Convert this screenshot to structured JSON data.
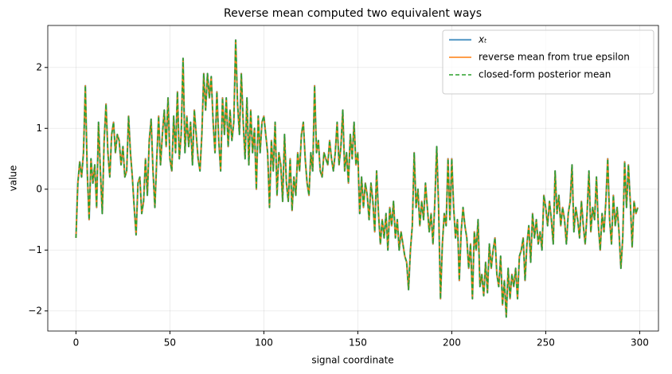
{
  "chart_data": {
    "type": "line",
    "title": "Reverse mean computed two equivalent ways",
    "xlabel": "signal coordinate",
    "ylabel": "value",
    "x": [
      0,
      1,
      2,
      3,
      4,
      5,
      6,
      7,
      8,
      9,
      10,
      11,
      12,
      13,
      14,
      15,
      16,
      17,
      18,
      19,
      20,
      21,
      22,
      23,
      24,
      25,
      26,
      27,
      28,
      29,
      30,
      31,
      32,
      33,
      34,
      35,
      36,
      37,
      38,
      39,
      40,
      41,
      42,
      43,
      44,
      45,
      46,
      47,
      48,
      49,
      50,
      51,
      52,
      53,
      54,
      55,
      56,
      57,
      58,
      59,
      60,
      61,
      62,
      63,
      64,
      65,
      66,
      67,
      68,
      69,
      70,
      71,
      72,
      73,
      74,
      75,
      76,
      77,
      78,
      79,
      80,
      81,
      82,
      83,
      84,
      85,
      86,
      87,
      88,
      89,
      90,
      91,
      92,
      93,
      94,
      95,
      96,
      97,
      98,
      99,
      100,
      101,
      102,
      103,
      104,
      105,
      106,
      107,
      108,
      109,
      110,
      111,
      112,
      113,
      114,
      115,
      116,
      117,
      118,
      119,
      120,
      121,
      122,
      123,
      124,
      125,
      126,
      127,
      128,
      129,
      130,
      131,
      132,
      133,
      134,
      135,
      136,
      137,
      138,
      139,
      140,
      141,
      142,
      143,
      144,
      145,
      146,
      147,
      148,
      149,
      150,
      151,
      152,
      153,
      154,
      155,
      156,
      157,
      158,
      159,
      160,
      161,
      162,
      163,
      164,
      165,
      166,
      167,
      168,
      169,
      170,
      171,
      172,
      173,
      174,
      175,
      176,
      177,
      178,
      179,
      180,
      181,
      182,
      183,
      184,
      185,
      186,
      187,
      188,
      189,
      190,
      191,
      192,
      193,
      194,
      195,
      196,
      197,
      198,
      199,
      200,
      201,
      202,
      203,
      204,
      205,
      206,
      207,
      208,
      209,
      210,
      211,
      212,
      213,
      214,
      215,
      216,
      217,
      218,
      219,
      220,
      221,
      222,
      223,
      224,
      225,
      226,
      227,
      228,
      229,
      230,
      231,
      232,
      233,
      234,
      235,
      236,
      237,
      238,
      239,
      240,
      241,
      242,
      243,
      244,
      245,
      246,
      247,
      248,
      249,
      250,
      251,
      252,
      253,
      254,
      255,
      256,
      257,
      258,
      259,
      260,
      261,
      262,
      263,
      264,
      265,
      266,
      267,
      268,
      269,
      270,
      271,
      272,
      273,
      274,
      275,
      276,
      277,
      278,
      279,
      280,
      281,
      282,
      283,
      284,
      285,
      286,
      287,
      288,
      289,
      290,
      291,
      292,
      293,
      294,
      295,
      296,
      297,
      298,
      299
    ],
    "series": [
      {
        "name": "xₜ",
        "color": "#1f77b4",
        "opacity": 0.7,
        "width": 2.2,
        "linestyle": "solid",
        "values": [
          -0.8,
          0.1,
          0.45,
          0.2,
          0.6,
          1.7,
          0.3,
          -0.5,
          0.5,
          0.1,
          0.4,
          -0.3,
          1.1,
          0.3,
          -0.4,
          0.8,
          1.4,
          0.6,
          0.2,
          0.9,
          1.1,
          0.6,
          0.9,
          0.8,
          0.4,
          0.7,
          0.2,
          0.3,
          1.2,
          0.6,
          0.2,
          -0.3,
          -0.75,
          0.1,
          0.2,
          -0.4,
          -0.2,
          0.5,
          -0.1,
          0.8,
          1.15,
          0.3,
          -0.3,
          0.5,
          1.2,
          0.4,
          0.9,
          1.3,
          0.7,
          1.5,
          0.5,
          0.3,
          1.2,
          0.6,
          1.6,
          0.5,
          0.9,
          2.15,
          0.6,
          1.2,
          0.7,
          1.1,
          0.4,
          1.3,
          0.9,
          0.5,
          0.3,
          0.9,
          1.9,
          1.3,
          1.9,
          1.5,
          1.85,
          1.1,
          0.6,
          1.6,
          0.8,
          0.3,
          1.5,
          0.9,
          1.5,
          0.7,
          1.3,
          0.8,
          1.1,
          2.45,
          1.4,
          0.9,
          1.9,
          1.1,
          0.5,
          1.5,
          0.4,
          1.3,
          0.6,
          1.0,
          0.0,
          1.2,
          0.6,
          1.1,
          1.2,
          0.9,
          0.6,
          -0.3,
          0.8,
          0.3,
          1.1,
          -0.1,
          0.6,
          0.4,
          -0.2,
          0.9,
          0.1,
          -0.2,
          0.5,
          -0.35,
          0.2,
          -0.1,
          0.6,
          0.3,
          0.9,
          1.1,
          0.5,
          0.1,
          -0.1,
          0.6,
          0.3,
          1.7,
          0.6,
          0.8,
          0.3,
          0.2,
          0.6,
          0.5,
          0.4,
          0.8,
          0.5,
          0.3,
          0.6,
          1.1,
          0.4,
          0.7,
          1.3,
          0.3,
          0.6,
          0.1,
          0.9,
          0.5,
          1.1,
          0.4,
          0.6,
          -0.4,
          0.2,
          -0.3,
          0.1,
          -0.1,
          -0.5,
          0.1,
          -0.2,
          -0.7,
          0.3,
          -0.4,
          -0.9,
          -0.5,
          -0.8,
          -0.4,
          -1.0,
          -0.3,
          -0.6,
          -0.2,
          -0.8,
          -0.5,
          -1.0,
          -0.7,
          -0.9,
          -1.1,
          -1.2,
          -1.65,
          -1.0,
          -0.6,
          0.6,
          -0.3,
          0.0,
          -0.6,
          -0.2,
          -0.5,
          0.1,
          -0.3,
          -0.7,
          -0.4,
          -0.9,
          -0.2,
          0.7,
          -0.3,
          -1.8,
          -0.9,
          -0.4,
          -0.6,
          0.5,
          -0.5,
          0.5,
          -0.3,
          -0.8,
          -0.5,
          -1.5,
          -0.7,
          -0.3,
          -0.6,
          -0.8,
          -1.3,
          -0.9,
          -1.8,
          -0.7,
          -1.0,
          -0.5,
          -1.6,
          -1.4,
          -1.75,
          -1.2,
          -1.7,
          -0.9,
          -1.3,
          -1.0,
          -0.8,
          -1.4,
          -1.6,
          -1.1,
          -1.9,
          -1.5,
          -2.1,
          -1.3,
          -1.8,
          -1.4,
          -1.6,
          -1.3,
          -1.8,
          -1.1,
          -1.0,
          -0.8,
          -1.5,
          -0.9,
          -0.6,
          -1.2,
          -0.4,
          -0.8,
          -0.5,
          -0.9,
          -0.7,
          -1.0,
          -0.1,
          -0.3,
          -0.6,
          -0.2,
          -0.5,
          -0.9,
          0.3,
          -0.4,
          -0.1,
          -0.6,
          -0.3,
          -0.5,
          -0.9,
          -0.4,
          -0.2,
          0.4,
          -0.7,
          -0.3,
          -0.5,
          -0.8,
          -0.2,
          -0.6,
          -0.9,
          -0.4,
          0.3,
          -0.7,
          -0.3,
          -0.5,
          0.2,
          -0.6,
          -1.0,
          -0.4,
          -0.7,
          -0.2,
          0.5,
          -0.5,
          -0.9,
          -0.1,
          -0.6,
          -0.3,
          -0.7,
          -1.3,
          -0.8,
          0.45,
          -0.3,
          0.4,
          -0.2,
          -0.95,
          -0.2,
          -0.4,
          -0.3
        ]
      },
      {
        "name": "reverse mean from true epsilon",
        "color": "#ff7f0e",
        "opacity": 1,
        "width": 1.6,
        "linestyle": "solid",
        "values": [
          -0.8,
          0.1,
          0.45,
          0.2,
          0.6,
          1.7,
          0.3,
          -0.5,
          0.5,
          0.1,
          0.4,
          -0.3,
          1.1,
          0.3,
          -0.4,
          0.8,
          1.4,
          0.6,
          0.2,
          0.9,
          1.1,
          0.6,
          0.9,
          0.8,
          0.4,
          0.7,
          0.2,
          0.3,
          1.2,
          0.6,
          0.2,
          -0.3,
          -0.75,
          0.1,
          0.2,
          -0.4,
          -0.2,
          0.5,
          -0.1,
          0.8,
          1.15,
          0.3,
          -0.3,
          0.5,
          1.2,
          0.4,
          0.9,
          1.3,
          0.7,
          1.5,
          0.5,
          0.3,
          1.2,
          0.6,
          1.6,
          0.5,
          0.9,
          2.15,
          0.6,
          1.2,
          0.7,
          1.1,
          0.4,
          1.3,
          0.9,
          0.5,
          0.3,
          0.9,
          1.9,
          1.3,
          1.9,
          1.5,
          1.85,
          1.1,
          0.6,
          1.6,
          0.8,
          0.3,
          1.5,
          0.9,
          1.5,
          0.7,
          1.3,
          0.8,
          1.1,
          2.45,
          1.4,
          0.9,
          1.9,
          1.1,
          0.5,
          1.5,
          0.4,
          1.3,
          0.6,
          1.0,
          0.0,
          1.2,
          0.6,
          1.1,
          1.2,
          0.9,
          0.6,
          -0.3,
          0.8,
          0.3,
          1.1,
          -0.1,
          0.6,
          0.4,
          -0.2,
          0.9,
          0.1,
          -0.2,
          0.5,
          -0.35,
          0.2,
          -0.1,
          0.6,
          0.3,
          0.9,
          1.1,
          0.5,
          0.1,
          -0.1,
          0.6,
          0.3,
          1.7,
          0.6,
          0.8,
          0.3,
          0.2,
          0.6,
          0.5,
          0.4,
          0.8,
          0.5,
          0.3,
          0.6,
          1.1,
          0.4,
          0.7,
          1.3,
          0.3,
          0.6,
          0.1,
          0.9,
          0.5,
          1.1,
          0.4,
          0.6,
          -0.4,
          0.2,
          -0.3,
          0.1,
          -0.1,
          -0.5,
          0.1,
          -0.2,
          -0.7,
          0.3,
          -0.4,
          -0.9,
          -0.5,
          -0.8,
          -0.4,
          -1.0,
          -0.3,
          -0.6,
          -0.2,
          -0.8,
          -0.5,
          -1.0,
          -0.7,
          -0.9,
          -1.1,
          -1.2,
          -1.65,
          -1.0,
          -0.6,
          0.6,
          -0.3,
          0.0,
          -0.6,
          -0.2,
          -0.5,
          0.1,
          -0.3,
          -0.7,
          -0.4,
          -0.9,
          -0.2,
          0.7,
          -0.3,
          -1.8,
          -0.9,
          -0.4,
          -0.6,
          0.5,
          -0.5,
          0.5,
          -0.3,
          -0.8,
          -0.5,
          -1.5,
          -0.7,
          -0.3,
          -0.6,
          -0.8,
          -1.3,
          -0.9,
          -1.8,
          -0.7,
          -1.0,
          -0.5,
          -1.6,
          -1.4,
          -1.75,
          -1.2,
          -1.7,
          -0.9,
          -1.3,
          -1.0,
          -0.8,
          -1.4,
          -1.6,
          -1.1,
          -1.9,
          -1.5,
          -2.1,
          -1.3,
          -1.8,
          -1.4,
          -1.6,
          -1.3,
          -1.8,
          -1.1,
          -1.0,
          -0.8,
          -1.5,
          -0.9,
          -0.6,
          -1.2,
          -0.4,
          -0.8,
          -0.5,
          -0.9,
          -0.7,
          -1.0,
          -0.1,
          -0.3,
          -0.6,
          -0.2,
          -0.5,
          -0.9,
          0.3,
          -0.4,
          -0.1,
          -0.6,
          -0.3,
          -0.5,
          -0.9,
          -0.4,
          -0.2,
          0.4,
          -0.7,
          -0.3,
          -0.5,
          -0.8,
          -0.2,
          -0.6,
          -0.9,
          -0.4,
          0.3,
          -0.7,
          -0.3,
          -0.5,
          0.2,
          -0.6,
          -1.0,
          -0.4,
          -0.7,
          -0.2,
          0.5,
          -0.5,
          -0.9,
          -0.1,
          -0.6,
          -0.3,
          -0.7,
          -1.3,
          -0.8,
          0.45,
          -0.3,
          0.4,
          -0.2,
          -0.95,
          -0.2,
          -0.4,
          -0.3
        ]
      },
      {
        "name": "closed-form posterior mean",
        "color": "#2ca02c",
        "opacity": 1,
        "width": 1.6,
        "linestyle": "dashed",
        "values": [
          -0.8,
          0.1,
          0.45,
          0.2,
          0.6,
          1.7,
          0.3,
          -0.5,
          0.5,
          0.1,
          0.4,
          -0.3,
          1.1,
          0.3,
          -0.4,
          0.8,
          1.4,
          0.6,
          0.2,
          0.9,
          1.1,
          0.6,
          0.9,
          0.8,
          0.4,
          0.7,
          0.2,
          0.3,
          1.2,
          0.6,
          0.2,
          -0.3,
          -0.75,
          0.1,
          0.2,
          -0.4,
          -0.2,
          0.5,
          -0.1,
          0.8,
          1.15,
          0.3,
          -0.3,
          0.5,
          1.2,
          0.4,
          0.9,
          1.3,
          0.7,
          1.5,
          0.5,
          0.3,
          1.2,
          0.6,
          1.6,
          0.5,
          0.9,
          2.15,
          0.6,
          1.2,
          0.7,
          1.1,
          0.4,
          1.3,
          0.9,
          0.5,
          0.3,
          0.9,
          1.9,
          1.3,
          1.9,
          1.5,
          1.85,
          1.1,
          0.6,
          1.6,
          0.8,
          0.3,
          1.5,
          0.9,
          1.5,
          0.7,
          1.3,
          0.8,
          1.1,
          2.45,
          1.4,
          0.9,
          1.9,
          1.1,
          0.5,
          1.5,
          0.4,
          1.3,
          0.6,
          1.0,
          0.0,
          1.2,
          0.6,
          1.1,
          1.2,
          0.9,
          0.6,
          -0.3,
          0.8,
          0.3,
          1.1,
          -0.1,
          0.6,
          0.4,
          -0.2,
          0.9,
          0.1,
          -0.2,
          0.5,
          -0.35,
          0.2,
          -0.1,
          0.6,
          0.3,
          0.9,
          1.1,
          0.5,
          0.1,
          -0.1,
          0.6,
          0.3,
          1.7,
          0.6,
          0.8,
          0.3,
          0.2,
          0.6,
          0.5,
          0.4,
          0.8,
          0.5,
          0.3,
          0.6,
          1.1,
          0.4,
          0.7,
          1.3,
          0.3,
          0.6,
          0.1,
          0.9,
          0.5,
          1.1,
          0.4,
          0.6,
          -0.4,
          0.2,
          -0.3,
          0.1,
          -0.1,
          -0.5,
          0.1,
          -0.2,
          -0.7,
          0.3,
          -0.4,
          -0.9,
          -0.5,
          -0.8,
          -0.4,
          -1.0,
          -0.3,
          -0.6,
          -0.2,
          -0.8,
          -0.5,
          -1.0,
          -0.7,
          -0.9,
          -1.1,
          -1.2,
          -1.65,
          -1.0,
          -0.6,
          0.6,
          -0.3,
          0.0,
          -0.6,
          -0.2,
          -0.5,
          0.1,
          -0.3,
          -0.7,
          -0.4,
          -0.9,
          -0.2,
          0.7,
          -0.3,
          -1.8,
          -0.9,
          -0.4,
          -0.6,
          0.5,
          -0.5,
          0.5,
          -0.3,
          -0.8,
          -0.5,
          -1.5,
          -0.7,
          -0.3,
          -0.6,
          -0.8,
          -1.3,
          -0.9,
          -1.8,
          -0.7,
          -1.0,
          -0.5,
          -1.6,
          -1.4,
          -1.75,
          -1.2,
          -1.7,
          -0.9,
          -1.3,
          -1.0,
          -0.8,
          -1.4,
          -1.6,
          -1.1,
          -1.9,
          -1.5,
          -2.1,
          -1.3,
          -1.8,
          -1.4,
          -1.6,
          -1.3,
          -1.8,
          -1.1,
          -1.0,
          -0.8,
          -1.5,
          -0.9,
          -0.6,
          -1.2,
          -0.4,
          -0.8,
          -0.5,
          -0.9,
          -0.7,
          -1.0,
          -0.1,
          -0.3,
          -0.6,
          -0.2,
          -0.5,
          -0.9,
          0.3,
          -0.4,
          -0.1,
          -0.6,
          -0.3,
          -0.5,
          -0.9,
          -0.4,
          -0.2,
          0.4,
          -0.7,
          -0.3,
          -0.5,
          -0.8,
          -0.2,
          -0.6,
          -0.9,
          -0.4,
          0.3,
          -0.7,
          -0.3,
          -0.5,
          0.2,
          -0.6,
          -1.0,
          -0.4,
          -0.7,
          -0.2,
          0.5,
          -0.5,
          -0.9,
          -0.1,
          -0.6,
          -0.3,
          -0.7,
          -1.3,
          -0.8,
          0.45,
          -0.3,
          0.4,
          -0.2,
          -0.95,
          -0.2,
          -0.4,
          -0.3
        ]
      }
    ],
    "xlim": [
      -15,
      310
    ],
    "xticks": [
      0,
      50,
      100,
      150,
      200,
      250,
      300
    ],
    "ylim": [
      -2.33,
      2.69
    ],
    "yticks": [
      {
        "value": -2,
        "label": "−2"
      },
      {
        "value": -1,
        "label": "−1"
      },
      0,
      1,
      2
    ],
    "grid": true,
    "legend": "upper right"
  }
}
